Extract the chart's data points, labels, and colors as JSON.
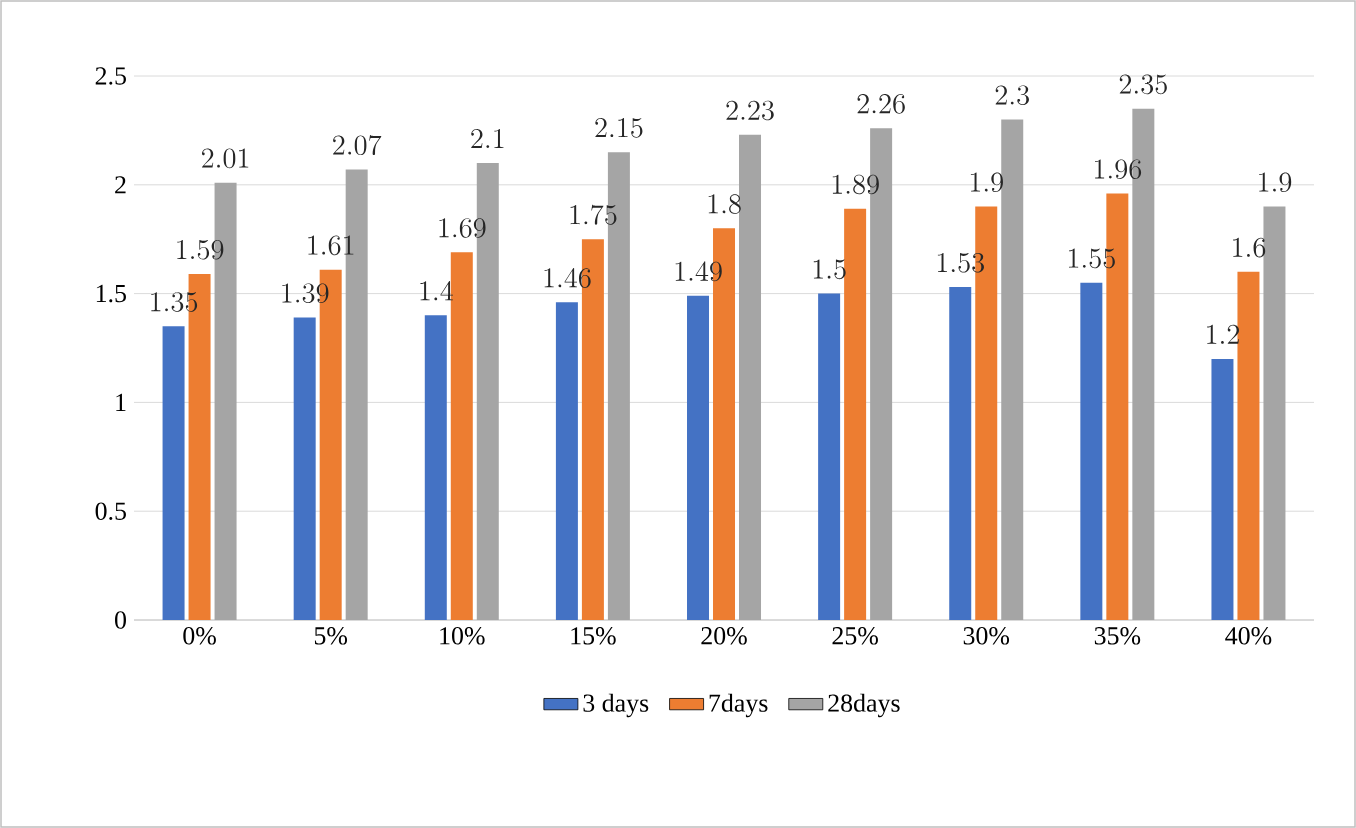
{
  "chart_data": {
    "type": "bar",
    "categories": [
      "0%",
      "5%",
      "10%",
      "15%",
      "20%",
      "25%",
      "30%",
      "35%",
      "40%"
    ],
    "series": [
      {
        "name": "3 days",
        "color": "#4472c4",
        "values": [
          1.35,
          1.39,
          1.4,
          1.46,
          1.49,
          1.5,
          1.53,
          1.55,
          1.2
        ]
      },
      {
        "name": "7days",
        "color": "#ed7d31",
        "values": [
          1.59,
          1.61,
          1.69,
          1.75,
          1.8,
          1.89,
          1.9,
          1.96,
          1.6
        ]
      },
      {
        "name": "28days",
        "color": "#a5a5a5",
        "values": [
          2.01,
          2.07,
          2.1,
          2.15,
          2.23,
          2.26,
          2.3,
          2.35,
          1.9
        ]
      }
    ],
    "ylim": [
      0,
      2.5
    ],
    "yticks": [
      0,
      0.5,
      1,
      1.5,
      2,
      2.5
    ],
    "grid": "y",
    "legend": "bottom",
    "data_labels": true
  }
}
